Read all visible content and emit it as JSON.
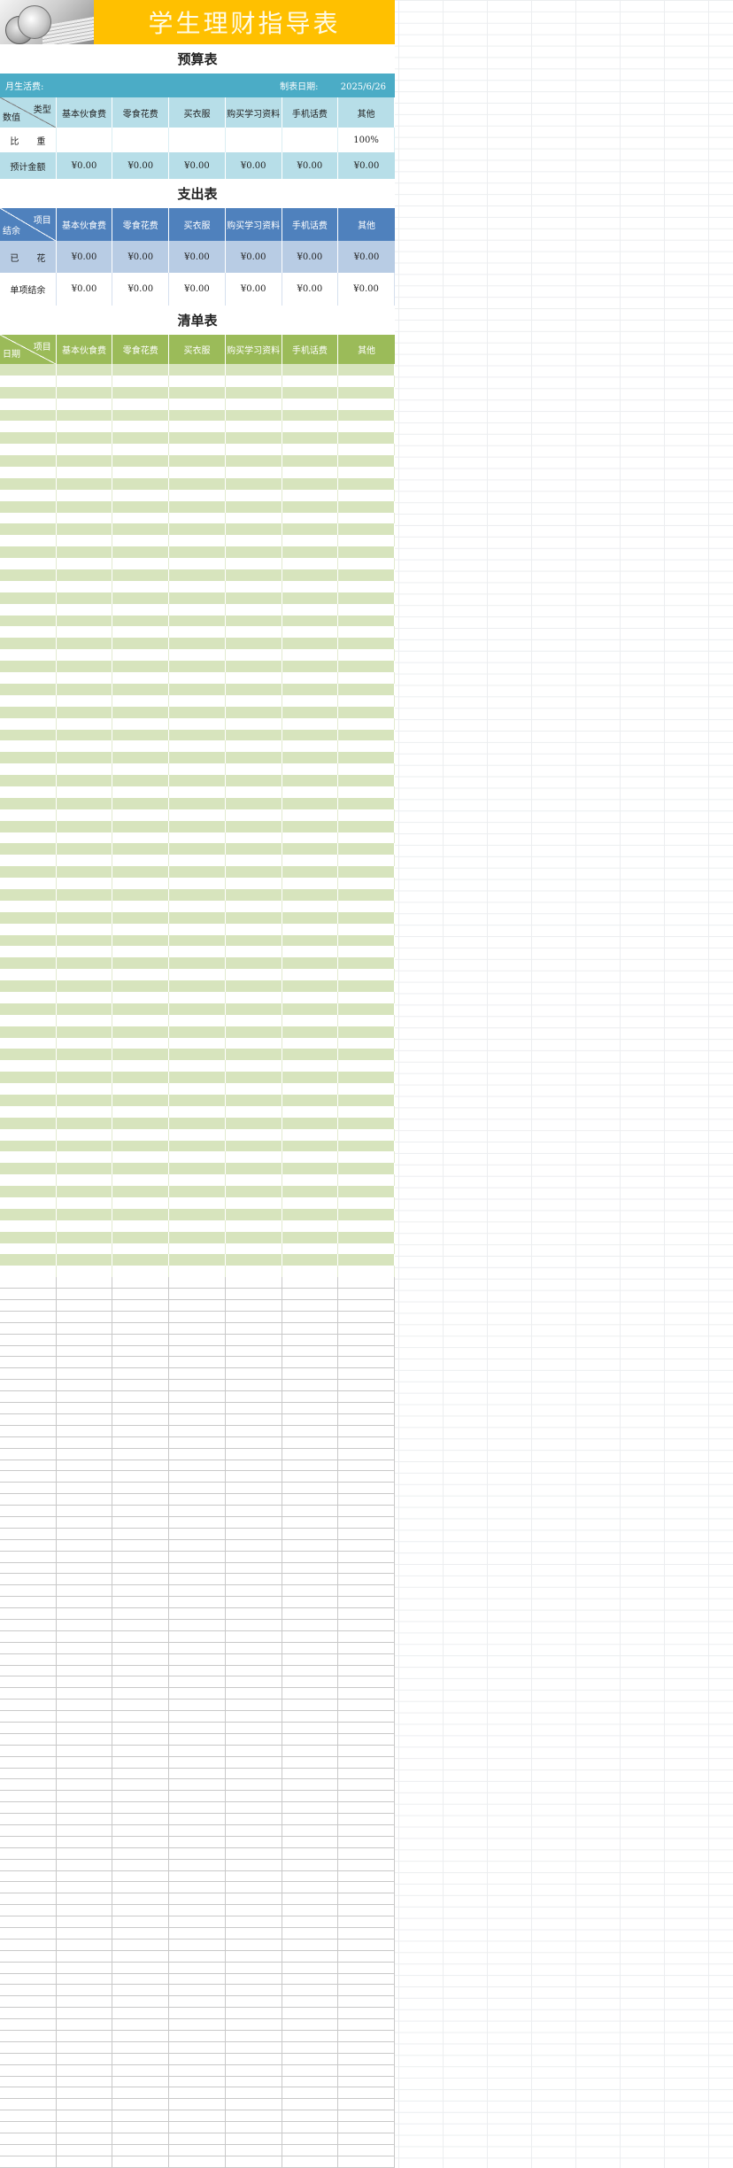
{
  "title": "学生理财指导表",
  "budget": {
    "section_title": "预算表",
    "living_cost_label": "月生活费:",
    "date_label": "制表日期:",
    "date_value": "2025/6/26",
    "corner_top": "类型",
    "corner_bottom": "数值",
    "columns": [
      "基本伙食费",
      "零食花费",
      "买衣服",
      "购买学习资料",
      "手机话费",
      "其他"
    ],
    "ratio_label": "比　　重",
    "ratio_values": [
      "",
      "",
      "",
      "",
      "",
      "100%"
    ],
    "amount_label": "预计金额",
    "amount_values": [
      "¥0.00",
      "¥0.00",
      "¥0.00",
      "¥0.00",
      "¥0.00",
      "¥0.00"
    ]
  },
  "expense": {
    "section_title": "支出表",
    "corner_top": "项目",
    "corner_bottom": "结余",
    "columns": [
      "基本伙食费",
      "零食花费",
      "买衣服",
      "购买学习资料",
      "手机话费",
      "其他"
    ],
    "spent_label": "已　　花",
    "spent_values": [
      "¥0.00",
      "¥0.00",
      "¥0.00",
      "¥0.00",
      "¥0.00",
      "¥0.00"
    ],
    "remain_label": "单项结余",
    "remain_values": [
      "¥0.00",
      "¥0.00",
      "¥0.00",
      "¥0.00",
      "¥0.00",
      "¥0.00"
    ]
  },
  "list": {
    "section_title": "清单表",
    "corner_top": "项目",
    "corner_bottom": "日期",
    "columns": [
      "基本伙食费",
      "零食花费",
      "买衣服",
      "购买学习资料",
      "手机话费",
      "其他"
    ]
  }
}
